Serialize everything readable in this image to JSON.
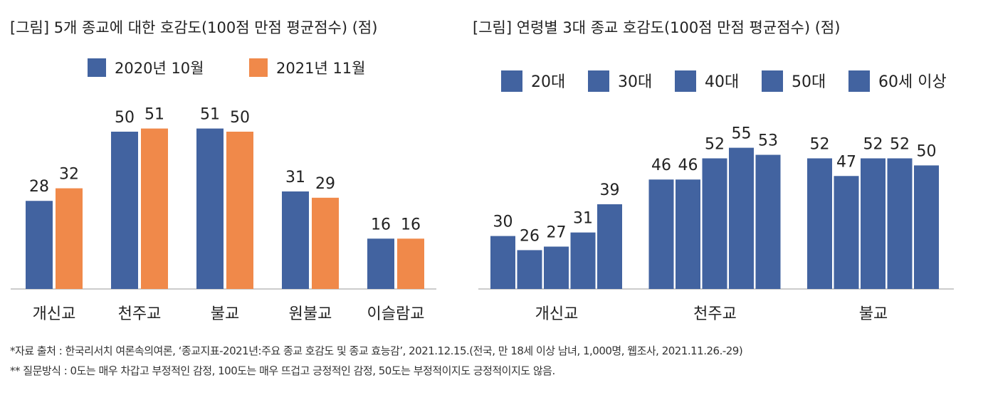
{
  "colors": {
    "blue": "#4263a0",
    "orange": "#f0894a",
    "axis": "#bbbbbb"
  },
  "chart_data": [
    {
      "type": "bar",
      "title": "[그림] 5개 종교에 대한 호감도(100점 만점 평균점수) (점)",
      "categories": [
        "개신교",
        "천주교",
        "불교",
        "원불교",
        "이슬람교"
      ],
      "series": [
        {
          "name": "2020년 10월",
          "values": [
            28,
            50,
            51,
            31,
            16
          ]
        },
        {
          "name": "2021년 11월",
          "values": [
            32,
            51,
            50,
            29,
            16
          ]
        }
      ],
      "ylim": [
        0,
        60
      ],
      "legend": "top",
      "grid": false
    },
    {
      "type": "bar",
      "title": "[그림] 연령별 3대 종교 호감도(100점 만점 평균점수) (점)",
      "categories": [
        "개신교",
        "천주교",
        "불교"
      ],
      "series": [
        {
          "name": "20대",
          "values": [
            30,
            46,
            52
          ]
        },
        {
          "name": "30대",
          "values": [
            26,
            46,
            47
          ]
        },
        {
          "name": "40대",
          "values": [
            27,
            52,
            52
          ]
        },
        {
          "name": "50대",
          "values": [
            31,
            55,
            52
          ]
        },
        {
          "name": "60세 이상",
          "values": [
            39,
            53,
            50
          ]
        }
      ],
      "ylim": [
        15,
        60
      ],
      "legend": "top",
      "grid": false
    }
  ],
  "notes": [
    "*자료 출처 : 한국리서치 여론속의여론, ‘종교지표-2021년:주요 종교 호감도 및 종교 효능감’, 2021.12.15.(전국, 만 18세 이상 남녀, 1,000명, 웹조사, 2021.11.26.-29)",
    "** 질문방식 : 0도는 매우 차갑고 부정적인 감정, 100도는 매우 뜨겁고 긍정적인 감정, 50도는 부정적이지도 긍정적이지도 않음."
  ]
}
